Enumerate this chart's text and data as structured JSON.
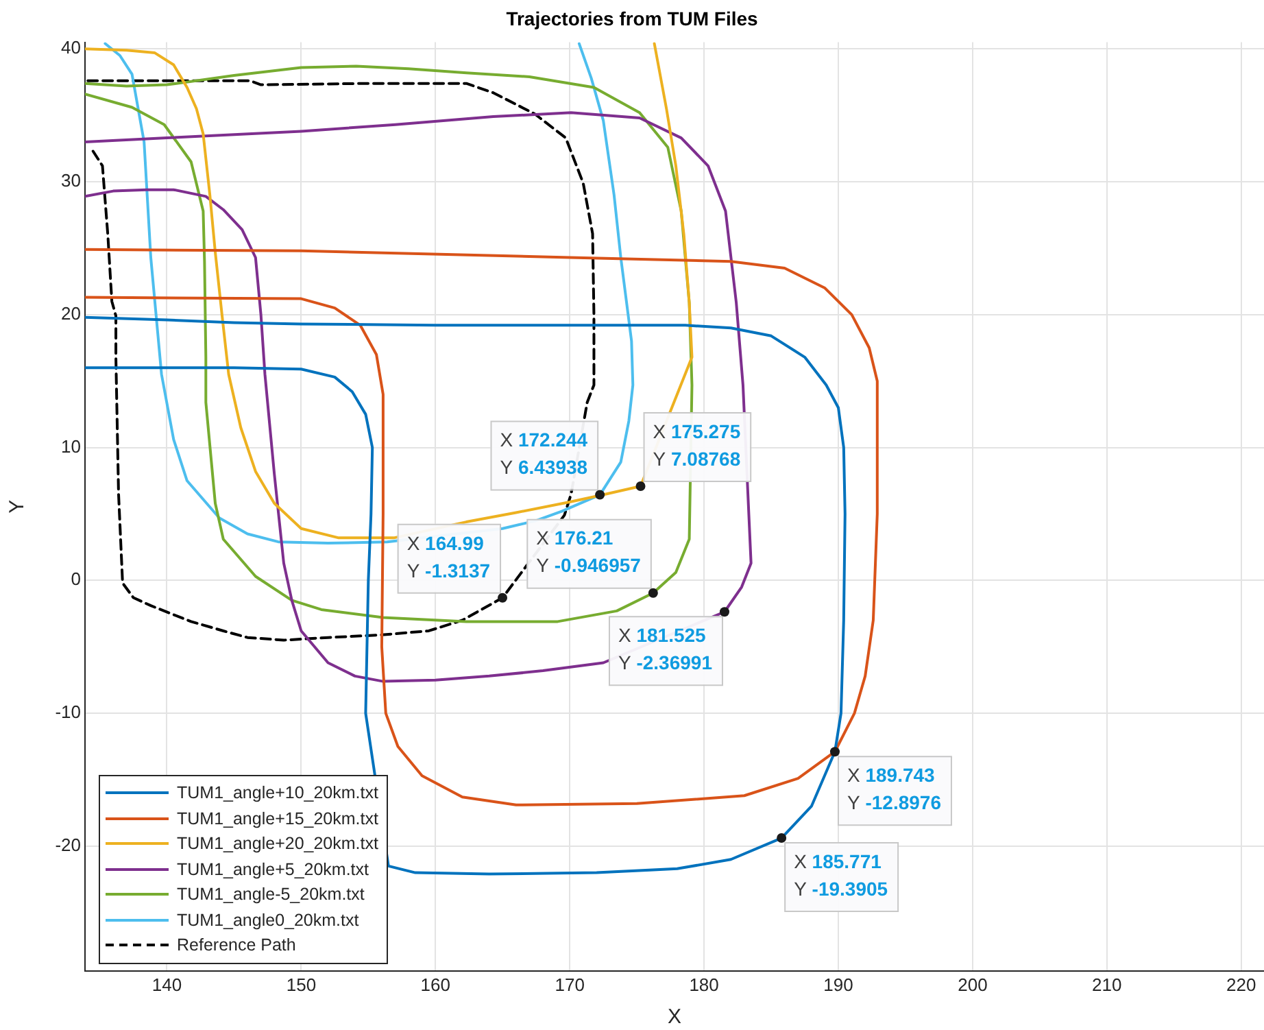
{
  "chart_data": {
    "type": "line",
    "title": "Trajectories from TUM Files",
    "xlabel": "X",
    "ylabel": "Y",
    "xlim": [
      133.9,
      221.7
    ],
    "ylim": [
      -29.4,
      40.5
    ],
    "xticks": [
      140,
      150,
      160,
      170,
      180,
      190,
      200,
      210,
      220
    ],
    "yticks": [
      -20,
      -10,
      0,
      10,
      20,
      30,
      40
    ],
    "grid": true,
    "legend": "bottom left",
    "marker": "none",
    "series": [
      {
        "name": "TUM1_angle+10_20km.txt",
        "color": "#0072bd",
        "x": [
          133.9,
          145,
          150,
          152.5,
          153.8,
          154.8,
          155.3,
          155.2,
          155.0,
          154.8,
          156.5,
          158.5,
          164,
          172,
          178,
          182,
          185.771,
          188,
          189.743,
          190.2,
          190.4,
          190.5,
          190.4,
          190.0,
          189.1,
          187.5,
          185,
          182,
          178.6,
          170,
          160,
          150,
          145,
          140,
          133.9
        ],
        "values": [
          16.0,
          16.0,
          15.9,
          15.3,
          14.2,
          12.5,
          10,
          5,
          0,
          -10,
          -21.5,
          -22.0,
          -22.1,
          -22.0,
          -21.7,
          -21.0,
          -19.3905,
          -17,
          -12.8976,
          -10,
          -3,
          5,
          10,
          13,
          14.7,
          16.8,
          18.4,
          19.0,
          19.2,
          19.2,
          19.2,
          19.3,
          19.4,
          19.6,
          19.8
        ]
      },
      {
        "name": "TUM1_angle+15_20km.txt",
        "color": "#d95319",
        "x": [
          133.9,
          150,
          152.5,
          154.4,
          155.6,
          156.1,
          156.1,
          156.0,
          156.3,
          157.2,
          159,
          162,
          166,
          175,
          183,
          187,
          189.743,
          191.2,
          192.0,
          192.6,
          192.9,
          192.9,
          192.3,
          191,
          189,
          186,
          182,
          170,
          150,
          133.9
        ],
        "values": [
          21.3,
          21.2,
          20.5,
          19.2,
          17,
          14,
          5,
          -5,
          -10,
          -12.5,
          -14.7,
          -16.3,
          -16.9,
          -16.8,
          -16.2,
          -14.9,
          -12.8976,
          -10,
          -7.2,
          -3,
          5,
          15,
          17.5,
          20,
          22,
          23.5,
          24.0,
          24.3,
          24.8,
          24.9
        ]
      },
      {
        "name": "TUM1_angle+20_20km.txt",
        "color": "#edb120",
        "x": [
          133.9,
          137,
          139.1,
          140.5,
          141.5,
          142.2,
          142.7,
          143.2,
          143.6,
          144.1,
          144.6,
          145.5,
          146.6,
          148,
          150,
          152.8,
          156.9,
          162.3,
          166,
          170,
          172.3,
          175.275,
          179.1,
          178.9,
          178.5,
          177.9,
          177.2,
          176.3
        ],
        "values": [
          40.0,
          39.9,
          39.7,
          38.8,
          37.1,
          35.5,
          33.6,
          29,
          24.7,
          20,
          15.5,
          11.5,
          8.2,
          5.8,
          3.9,
          3.2,
          3.2,
          4.4,
          5.1,
          5.9,
          6.4,
          7.08768,
          16.8,
          20.9,
          26,
          31.2,
          35.5,
          40.4
        ]
      },
      {
        "name": "TUM1_angle+5_20km.txt",
        "color": "#7e2f8e",
        "x": [
          133.9,
          136,
          138.5,
          140.5,
          142.9,
          144.2,
          145.6,
          146.6,
          147.0,
          147.3,
          148,
          148.7,
          149.3,
          150,
          152,
          154,
          156.1,
          160,
          164,
          168,
          172.5,
          181.525,
          182.8,
          183.5,
          182.9,
          182.4,
          181.6,
          180.3,
          178.3,
          175.2,
          170.1,
          164.3,
          157,
          150,
          140,
          133.9
        ],
        "values": [
          28.9,
          29.3,
          29.4,
          29.4,
          28.9,
          27.9,
          26.4,
          24.3,
          20,
          15.5,
          8,
          1.3,
          -1.5,
          -3.8,
          -6.2,
          -7.2,
          -7.6,
          -7.5,
          -7.2,
          -6.8,
          -6.2,
          -2.36991,
          -0.5,
          1.3,
          14.7,
          20.9,
          27.8,
          31.2,
          33.3,
          34.8,
          35.2,
          34.9,
          34.3,
          33.8,
          33.3,
          33.0
        ]
      },
      {
        "name": "TUM1_angle-5_20km.txt",
        "color": "#77ac30",
        "x": [
          133.9,
          137,
          140,
          145,
          150,
          154.1,
          158,
          162.3,
          167,
          171.8,
          175.2,
          177.3,
          178.3,
          178.9,
          179.1,
          178.9,
          177.9,
          176.21,
          173.5,
          169.1,
          162.3,
          156.1,
          151.5,
          149.3,
          146.6,
          144.2,
          143.6,
          142.9,
          142.9,
          142.8,
          142.7,
          141.8,
          139.8,
          137.4,
          133.9
        ],
        "values": [
          37.4,
          37.2,
          37.3,
          38.0,
          38.6,
          38.7,
          38.5,
          38.2,
          37.9,
          37.1,
          35.2,
          32.6,
          27.8,
          20.9,
          14.7,
          3.1,
          0.6,
          -0.946957,
          -2.3,
          -3.1,
          -3.1,
          -2.8,
          -2.2,
          -1.5,
          0.3,
          3.1,
          5.8,
          13.4,
          16.8,
          24,
          27.8,
          31.5,
          34.3,
          35.6,
          36.6
        ]
      },
      {
        "name": "TUM1_angle0_20km.txt",
        "color": "#4dbeee",
        "x": [
          135.4,
          136.5,
          137.4,
          138.3,
          138.8,
          139.6,
          140.5,
          141.5,
          143.9,
          146,
          148.3,
          152,
          156.4,
          165,
          167.5,
          169.4,
          172.244,
          173.8,
          174.4,
          174.7,
          174.6,
          173.8,
          173.3,
          172.5,
          171.6,
          170.7
        ],
        "values": [
          40.4,
          39.5,
          38.1,
          33,
          24.3,
          15.5,
          10.6,
          7.5,
          4.7,
          3.5,
          2.9,
          2.8,
          2.9,
          3.9,
          4.5,
          5.2,
          6.43938,
          8.9,
          12,
          14.7,
          18,
          24.3,
          29,
          34.6,
          37.8,
          40.4
        ]
      },
      {
        "name": "Reference Path",
        "color": "#000000",
        "line_style": "dashed",
        "x": [
          134.5,
          135.2,
          135.6,
          135.9,
          136.2,
          136.2,
          136.4,
          136.7,
          137.5,
          138.8,
          140.3,
          141.8,
          144.2,
          146,
          148.7,
          152,
          156,
          159.5,
          162,
          164.99,
          169.6,
          170.1,
          171.3,
          171.8,
          171.8,
          171.7,
          171,
          169.7,
          167.4,
          164.3,
          162.3,
          155,
          147,
          146.2,
          140,
          133.9
        ],
        "values": [
          32.3,
          31.2,
          26,
          21,
          19.9,
          16.8,
          6.5,
          -0.2,
          -1.3,
          -1.9,
          -2.5,
          -3.1,
          -3.8,
          -4.3,
          -4.5,
          -4.3,
          -4.1,
          -3.8,
          -3.0,
          -1.3137,
          4.9,
          6.5,
          13.4,
          14.7,
          20,
          26.1,
          29.9,
          33.3,
          35.1,
          36.7,
          37.4,
          37.4,
          37.3,
          37.6,
          37.6,
          37.6
        ]
      }
    ],
    "annotations": [
      {
        "text": "X 172.244\nY 6.43938",
        "x": 172.244,
        "y": 6.43938
      },
      {
        "text": "X 175.275\nY 7.08768",
        "x": 175.275,
        "y": 7.08768
      },
      {
        "text": "X 164.99\nY -1.3137",
        "x": 164.99,
        "y": -1.3137
      },
      {
        "text": "X 176.21\nY -0.946957",
        "x": 176.21,
        "y": -0.946957
      },
      {
        "text": "X 181.525\nY -2.36991",
        "x": 181.525,
        "y": -2.36991
      },
      {
        "text": "X 189.743\nY -12.8976",
        "x": 189.743,
        "y": -12.8976
      },
      {
        "text": "X 185.771\nY -19.3905",
        "x": 185.771,
        "y": -19.3905
      }
    ]
  }
}
